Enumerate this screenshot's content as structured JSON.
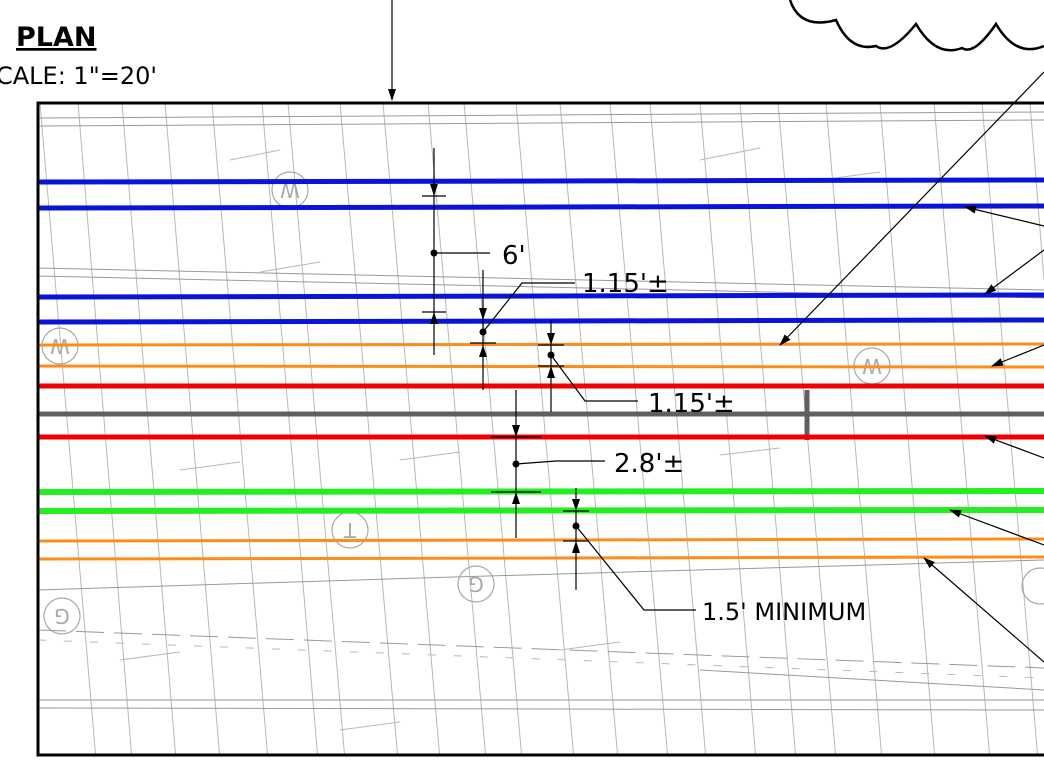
{
  "title": "PLAN",
  "scale": "CALE: 1\"=20'",
  "dimensions": {
    "d_6ft": "6'",
    "d_115_a": "1.15'±",
    "d_115_b": "1.15'±",
    "d_28": "2.8'±",
    "d_15min": "1.5' MINIMUM"
  },
  "utility_colors": {
    "blue": "#0a14d9",
    "orange": "#ff8c1a",
    "red": "#f00000",
    "gray": "#5f5f5f",
    "green": "#22ee22"
  },
  "survey_marks": {
    "water": "W",
    "telephone": "T",
    "gas": "G"
  }
}
